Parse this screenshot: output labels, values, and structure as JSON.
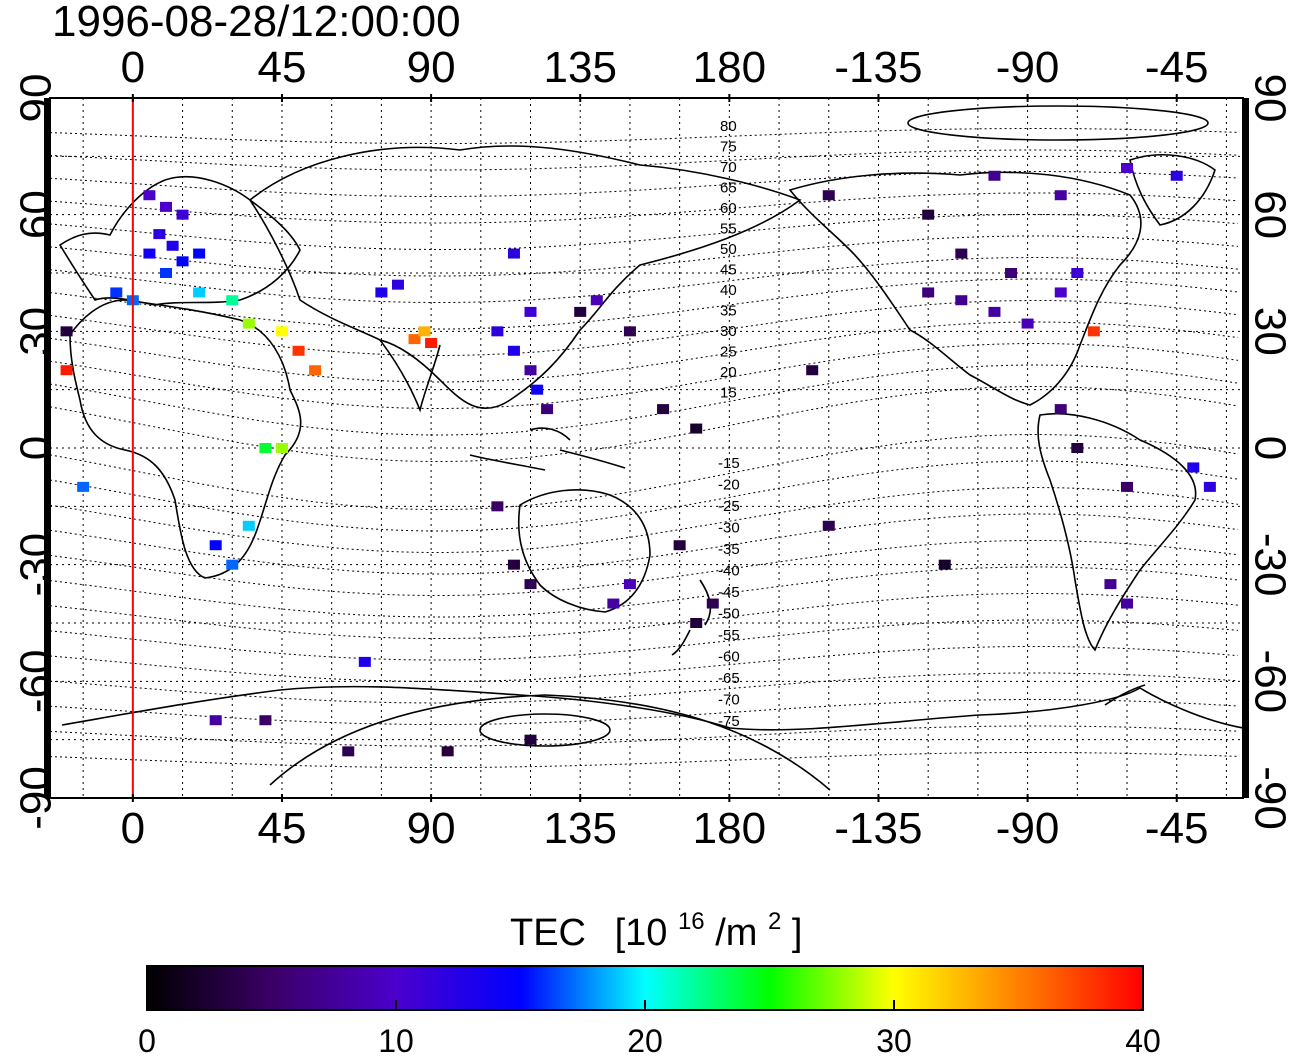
{
  "title": "1996-08-28/12:00:00",
  "map": {
    "projection": "equirectangular",
    "lon_start": -25,
    "lon_end": 335,
    "lat_range": [
      -90,
      90
    ],
    "grid": true,
    "top_lon_ticks": [
      "0",
      "45",
      "90",
      "135",
      "180",
      "-135",
      "-90",
      "-45"
    ],
    "bottom_lon_ticks": [
      "0",
      "45",
      "90",
      "135",
      "180",
      "-135",
      "-90",
      "-45"
    ],
    "left_lat_ticks": [
      "90",
      "60",
      "30",
      "0",
      "-30",
      "-60",
      "-90"
    ],
    "right_lat_ticks": [
      "90",
      "60",
      "30",
      "0",
      "-30",
      "-60",
      "-90"
    ],
    "reference_meridian_lon": 0,
    "reference_meridian_color": "#ff0000",
    "contour_labels_north": [
      "80",
      "75",
      "70",
      "65",
      "60",
      "55",
      "50",
      "45",
      "40",
      "35",
      "30",
      "25",
      "20",
      "15"
    ],
    "contour_labels_south": [
      "-15",
      "-20",
      "-25",
      "-30",
      "-35",
      "-40",
      "-45",
      "-50",
      "-55",
      "-60",
      "-65",
      "-70",
      "-75"
    ]
  },
  "colorbar": {
    "title": "TEC",
    "unit": "[10",
    "unit_exp": "16",
    "unit_tail": "/m",
    "unit_exp2": "2",
    "unit_close": "]",
    "min": 0,
    "max": 40,
    "ticks": [
      "0",
      "10",
      "20",
      "30",
      "40"
    ],
    "stops": [
      "#000000",
      "#3a0066",
      "#4b00cc",
      "#0000ff",
      "#00ffff",
      "#00ff00",
      "#ffff00",
      "#ff8000",
      "#ff0000"
    ]
  },
  "chart_data": {
    "type": "scatter",
    "quantity": "TEC",
    "colorscale_range": [
      0,
      40
    ],
    "points": [
      {
        "lon": 5,
        "lat": 65,
        "v": 10
      },
      {
        "lon": 10,
        "lat": 62,
        "v": 10
      },
      {
        "lon": 15,
        "lat": 60,
        "v": 11
      },
      {
        "lon": 8,
        "lat": 55,
        "v": 12
      },
      {
        "lon": 12,
        "lat": 52,
        "v": 13
      },
      {
        "lon": 5,
        "lat": 50,
        "v": 14
      },
      {
        "lon": 15,
        "lat": 48,
        "v": 15
      },
      {
        "lon": 10,
        "lat": 45,
        "v": 16
      },
      {
        "lon": 20,
        "lat": 50,
        "v": 15
      },
      {
        "lon": -5,
        "lat": 40,
        "v": 16
      },
      {
        "lon": 0,
        "lat": 38,
        "v": 17
      },
      {
        "lon": 20,
        "lat": 40,
        "v": 19
      },
      {
        "lon": 30,
        "lat": 38,
        "v": 22
      },
      {
        "lon": 35,
        "lat": 32,
        "v": 28
      },
      {
        "lon": 45,
        "lat": 30,
        "v": 30
      },
      {
        "lon": 50,
        "lat": 25,
        "v": 38
      },
      {
        "lon": 55,
        "lat": 20,
        "v": 36
      },
      {
        "lon": 85,
        "lat": 28,
        "v": 36
      },
      {
        "lon": 88,
        "lat": 30,
        "v": 33
      },
      {
        "lon": 90,
        "lat": 27,
        "v": 39
      },
      {
        "lon": -20,
        "lat": 20,
        "v": 39
      },
      {
        "lon": -20,
        "lat": 30,
        "v": 3
      },
      {
        "lon": 40,
        "lat": 0,
        "v": 24
      },
      {
        "lon": 45,
        "lat": 0,
        "v": 28
      },
      {
        "lon": 30,
        "lat": -30,
        "v": 17
      },
      {
        "lon": 25,
        "lat": -25,
        "v": 15
      },
      {
        "lon": 35,
        "lat": -20,
        "v": 19
      },
      {
        "lon": -15,
        "lat": -10,
        "v": 17
      },
      {
        "lon": 110,
        "lat": 30,
        "v": 12
      },
      {
        "lon": 115,
        "lat": 25,
        "v": 13
      },
      {
        "lon": 120,
        "lat": 35,
        "v": 11
      },
      {
        "lon": 135,
        "lat": 35,
        "v": 3
      },
      {
        "lon": 140,
        "lat": 38,
        "v": 9
      },
      {
        "lon": 120,
        "lat": 20,
        "v": 8
      },
      {
        "lon": 122,
        "lat": 15,
        "v": 14
      },
      {
        "lon": 125,
        "lat": 10,
        "v": 6
      },
      {
        "lon": 115,
        "lat": 50,
        "v": 12
      },
      {
        "lon": 75,
        "lat": 40,
        "v": 13
      },
      {
        "lon": 80,
        "lat": 42,
        "v": 12
      },
      {
        "lon": 150,
        "lat": 30,
        "v": 4
      },
      {
        "lon": 160,
        "lat": 10,
        "v": 3
      },
      {
        "lon": 170,
        "lat": 5,
        "v": 2
      },
      {
        "lon": 115,
        "lat": -30,
        "v": 3
      },
      {
        "lon": 120,
        "lat": -35,
        "v": 4
      },
      {
        "lon": 150,
        "lat": -35,
        "v": 9
      },
      {
        "lon": 145,
        "lat": -40,
        "v": 8
      },
      {
        "lon": 175,
        "lat": -40,
        "v": 4
      },
      {
        "lon": 170,
        "lat": -45,
        "v": 3
      },
      {
        "lon": 165,
        "lat": -25,
        "v": 3
      },
      {
        "lon": 110,
        "lat": -15,
        "v": 5
      },
      {
        "lon": 25,
        "lat": -70,
        "v": 8
      },
      {
        "lon": 40,
        "lat": -70,
        "v": 5
      },
      {
        "lon": 70,
        "lat": -55,
        "v": 13
      },
      {
        "lon": 120,
        "lat": -75,
        "v": 3
      },
      {
        "lon": 95,
        "lat": -78,
        "v": 3
      },
      {
        "lon": 65,
        "lat": -78,
        "v": 4
      },
      {
        "lon": -120,
        "lat": 40,
        "v": 6
      },
      {
        "lon": -110,
        "lat": 38,
        "v": 7
      },
      {
        "lon": -100,
        "lat": 35,
        "v": 8
      },
      {
        "lon": -90,
        "lat": 32,
        "v": 9
      },
      {
        "lon": -80,
        "lat": 40,
        "v": 10
      },
      {
        "lon": -75,
        "lat": 45,
        "v": 11
      },
      {
        "lon": -95,
        "lat": 45,
        "v": 6
      },
      {
        "lon": -110,
        "lat": 50,
        "v": 4
      },
      {
        "lon": -120,
        "lat": 60,
        "v": 3
      },
      {
        "lon": -150,
        "lat": 65,
        "v": 4
      },
      {
        "lon": -100,
        "lat": 70,
        "v": 7
      },
      {
        "lon": -80,
        "lat": 65,
        "v": 8
      },
      {
        "lon": -60,
        "lat": 72,
        "v": 10
      },
      {
        "lon": -45,
        "lat": 70,
        "v": 12
      },
      {
        "lon": -70,
        "lat": 30,
        "v": 38
      },
      {
        "lon": -155,
        "lat": 20,
        "v": 3
      },
      {
        "lon": -80,
        "lat": 10,
        "v": 6
      },
      {
        "lon": -75,
        "lat": 0,
        "v": 3
      },
      {
        "lon": -60,
        "lat": -10,
        "v": 5
      },
      {
        "lon": -40,
        "lat": -5,
        "v": 13
      },
      {
        "lon": -35,
        "lat": -10,
        "v": 12
      },
      {
        "lon": -65,
        "lat": -35,
        "v": 7
      },
      {
        "lon": -60,
        "lat": -40,
        "v": 8
      },
      {
        "lon": -150,
        "lat": -20,
        "v": 4
      },
      {
        "lon": -115,
        "lat": -30,
        "v": 2
      }
    ]
  }
}
